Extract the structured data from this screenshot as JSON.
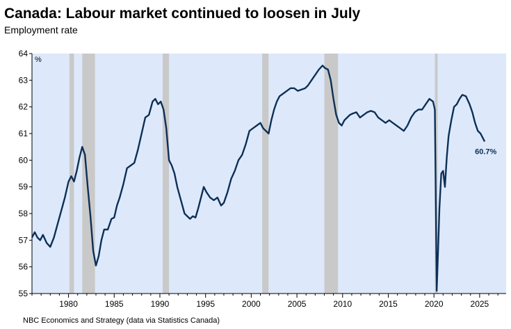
{
  "header": {
    "title": "Canada: Labour market continued to loosen in July",
    "subtitle": "Employment rate"
  },
  "footer": {
    "source": "NBC Economics and Strategy (data via Statistics Canada)"
  },
  "colors": {
    "plot_background": "#dde9fb",
    "recession_band": "#c9c9c9",
    "line": "#0d2f56"
  },
  "chart_data": {
    "type": "line",
    "unit_label": "%",
    "end_label": "60.7%",
    "xlim": [
      1976.0,
      2027.9
    ],
    "ylim": [
      55,
      64
    ],
    "x_ticks": [
      1980,
      1985,
      1990,
      1995,
      2000,
      2005,
      2010,
      2015,
      2020,
      2025
    ],
    "y_ticks": [
      55,
      56,
      57,
      58,
      59,
      60,
      61,
      62,
      63,
      64
    ],
    "grid": false,
    "recessions": [
      [
        1980.1,
        1980.6
      ],
      [
        1981.5,
        1982.9
      ],
      [
        1990.3,
        1991.0
      ],
      [
        2001.2,
        2001.9
      ],
      [
        2008.0,
        2009.5
      ],
      [
        2020.1,
        2020.4
      ]
    ],
    "series": [
      {
        "points": [
          [
            1976.0,
            57.1
          ],
          [
            1976.3,
            57.3
          ],
          [
            1976.6,
            57.1
          ],
          [
            1976.9,
            57.0
          ],
          [
            1977.2,
            57.2
          ],
          [
            1977.6,
            56.9
          ],
          [
            1978.0,
            56.75
          ],
          [
            1978.4,
            57.1
          ],
          [
            1978.8,
            57.6
          ],
          [
            1979.2,
            58.1
          ],
          [
            1979.6,
            58.6
          ],
          [
            1980.0,
            59.2
          ],
          [
            1980.3,
            59.4
          ],
          [
            1980.6,
            59.2
          ],
          [
            1980.9,
            59.6
          ],
          [
            1981.2,
            60.1
          ],
          [
            1981.5,
            60.5
          ],
          [
            1981.8,
            60.2
          ],
          [
            1982.1,
            59.0
          ],
          [
            1982.4,
            57.9
          ],
          [
            1982.7,
            56.6
          ],
          [
            1983.0,
            56.05
          ],
          [
            1983.3,
            56.4
          ],
          [
            1983.6,
            57.0
          ],
          [
            1983.9,
            57.4
          ],
          [
            1984.3,
            57.4
          ],
          [
            1984.7,
            57.8
          ],
          [
            1985.0,
            57.85
          ],
          [
            1985.3,
            58.3
          ],
          [
            1985.6,
            58.6
          ],
          [
            1986.0,
            59.1
          ],
          [
            1986.4,
            59.7
          ],
          [
            1986.8,
            59.8
          ],
          [
            1987.2,
            59.9
          ],
          [
            1987.6,
            60.4
          ],
          [
            1988.0,
            61.0
          ],
          [
            1988.4,
            61.6
          ],
          [
            1988.8,
            61.7
          ],
          [
            1989.2,
            62.2
          ],
          [
            1989.5,
            62.3
          ],
          [
            1989.8,
            62.1
          ],
          [
            1990.1,
            62.2
          ],
          [
            1990.4,
            61.9
          ],
          [
            1990.7,
            61.2
          ],
          [
            1991.0,
            60.0
          ],
          [
            1991.3,
            59.8
          ],
          [
            1991.6,
            59.5
          ],
          [
            1991.9,
            59.0
          ],
          [
            1992.3,
            58.5
          ],
          [
            1992.7,
            58.0
          ],
          [
            1993.0,
            57.9
          ],
          [
            1993.3,
            57.8
          ],
          [
            1993.6,
            57.9
          ],
          [
            1993.9,
            57.85
          ],
          [
            1994.2,
            58.2
          ],
          [
            1994.5,
            58.6
          ],
          [
            1994.8,
            59.0
          ],
          [
            1995.1,
            58.8
          ],
          [
            1995.5,
            58.6
          ],
          [
            1995.9,
            58.5
          ],
          [
            1996.3,
            58.6
          ],
          [
            1996.7,
            58.3
          ],
          [
            1997.0,
            58.4
          ],
          [
            1997.4,
            58.8
          ],
          [
            1997.8,
            59.3
          ],
          [
            1998.2,
            59.6
          ],
          [
            1998.6,
            60.0
          ],
          [
            1999.0,
            60.2
          ],
          [
            1999.4,
            60.6
          ],
          [
            1999.8,
            61.1
          ],
          [
            2000.2,
            61.2
          ],
          [
            2000.6,
            61.3
          ],
          [
            2001.0,
            61.4
          ],
          [
            2001.3,
            61.2
          ],
          [
            2001.6,
            61.1
          ],
          [
            2001.9,
            61.0
          ],
          [
            2002.2,
            61.5
          ],
          [
            2002.5,
            61.9
          ],
          [
            2002.8,
            62.2
          ],
          [
            2003.1,
            62.4
          ],
          [
            2003.5,
            62.5
          ],
          [
            2003.9,
            62.6
          ],
          [
            2004.3,
            62.7
          ],
          [
            2004.7,
            62.7
          ],
          [
            2005.1,
            62.6
          ],
          [
            2005.5,
            62.65
          ],
          [
            2005.9,
            62.7
          ],
          [
            2006.2,
            62.8
          ],
          [
            2006.6,
            63.0
          ],
          [
            2007.0,
            63.2
          ],
          [
            2007.4,
            63.4
          ],
          [
            2007.8,
            63.55
          ],
          [
            2008.1,
            63.45
          ],
          [
            2008.4,
            63.4
          ],
          [
            2008.7,
            63.0
          ],
          [
            2009.0,
            62.3
          ],
          [
            2009.3,
            61.7
          ],
          [
            2009.6,
            61.4
          ],
          [
            2009.9,
            61.3
          ],
          [
            2010.2,
            61.5
          ],
          [
            2010.5,
            61.6
          ],
          [
            2010.8,
            61.7
          ],
          [
            2011.1,
            61.75
          ],
          [
            2011.5,
            61.8
          ],
          [
            2011.9,
            61.6
          ],
          [
            2012.3,
            61.7
          ],
          [
            2012.7,
            61.8
          ],
          [
            2013.1,
            61.85
          ],
          [
            2013.5,
            61.8
          ],
          [
            2013.9,
            61.6
          ],
          [
            2014.3,
            61.5
          ],
          [
            2014.7,
            61.4
          ],
          [
            2015.1,
            61.5
          ],
          [
            2015.5,
            61.4
          ],
          [
            2015.9,
            61.3
          ],
          [
            2016.3,
            61.2
          ],
          [
            2016.7,
            61.1
          ],
          [
            2017.1,
            61.3
          ],
          [
            2017.5,
            61.6
          ],
          [
            2017.9,
            61.8
          ],
          [
            2018.3,
            61.9
          ],
          [
            2018.7,
            61.9
          ],
          [
            2019.1,
            62.1
          ],
          [
            2019.5,
            62.3
          ],
          [
            2019.9,
            62.2
          ],
          [
            2020.1,
            61.9
          ],
          [
            2020.2,
            58.5
          ],
          [
            2020.3,
            55.1
          ],
          [
            2020.45,
            56.6
          ],
          [
            2020.6,
            58.2
          ],
          [
            2020.8,
            59.5
          ],
          [
            2021.0,
            59.6
          ],
          [
            2021.2,
            59.0
          ],
          [
            2021.4,
            60.1
          ],
          [
            2021.6,
            60.9
          ],
          [
            2021.9,
            61.5
          ],
          [
            2022.2,
            62.0
          ],
          [
            2022.5,
            62.1
          ],
          [
            2022.8,
            62.3
          ],
          [
            2023.1,
            62.45
          ],
          [
            2023.5,
            62.4
          ],
          [
            2023.9,
            62.1
          ],
          [
            2024.2,
            61.8
          ],
          [
            2024.5,
            61.4
          ],
          [
            2024.8,
            61.1
          ],
          [
            2025.1,
            61.0
          ],
          [
            2025.4,
            60.8
          ],
          [
            2025.55,
            60.7
          ]
        ]
      }
    ]
  }
}
